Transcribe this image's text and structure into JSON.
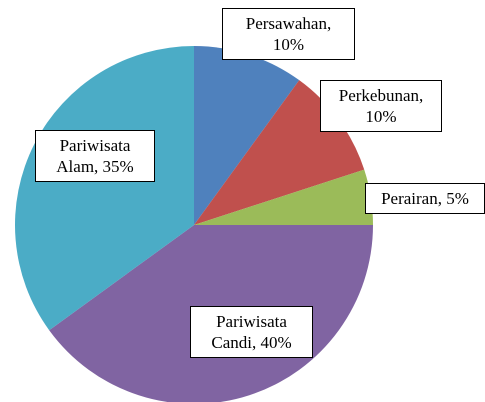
{
  "chart_data": {
    "type": "pie",
    "values": [
      10,
      10,
      5,
      40,
      35
    ],
    "value_labels": [
      "Persawahan, 10%",
      "Perkebunan, 10%",
      "Perairan, 5%",
      "Pariwisata Candi, 40%",
      "Pariwisata Alam, 35%"
    ],
    "colors": [
      "#4f81bd",
      "#c0504d",
      "#9bbb59",
      "#8064a2",
      "#4bacc6"
    ],
    "start_angle": 90,
    "direction": "clockwise"
  }
}
